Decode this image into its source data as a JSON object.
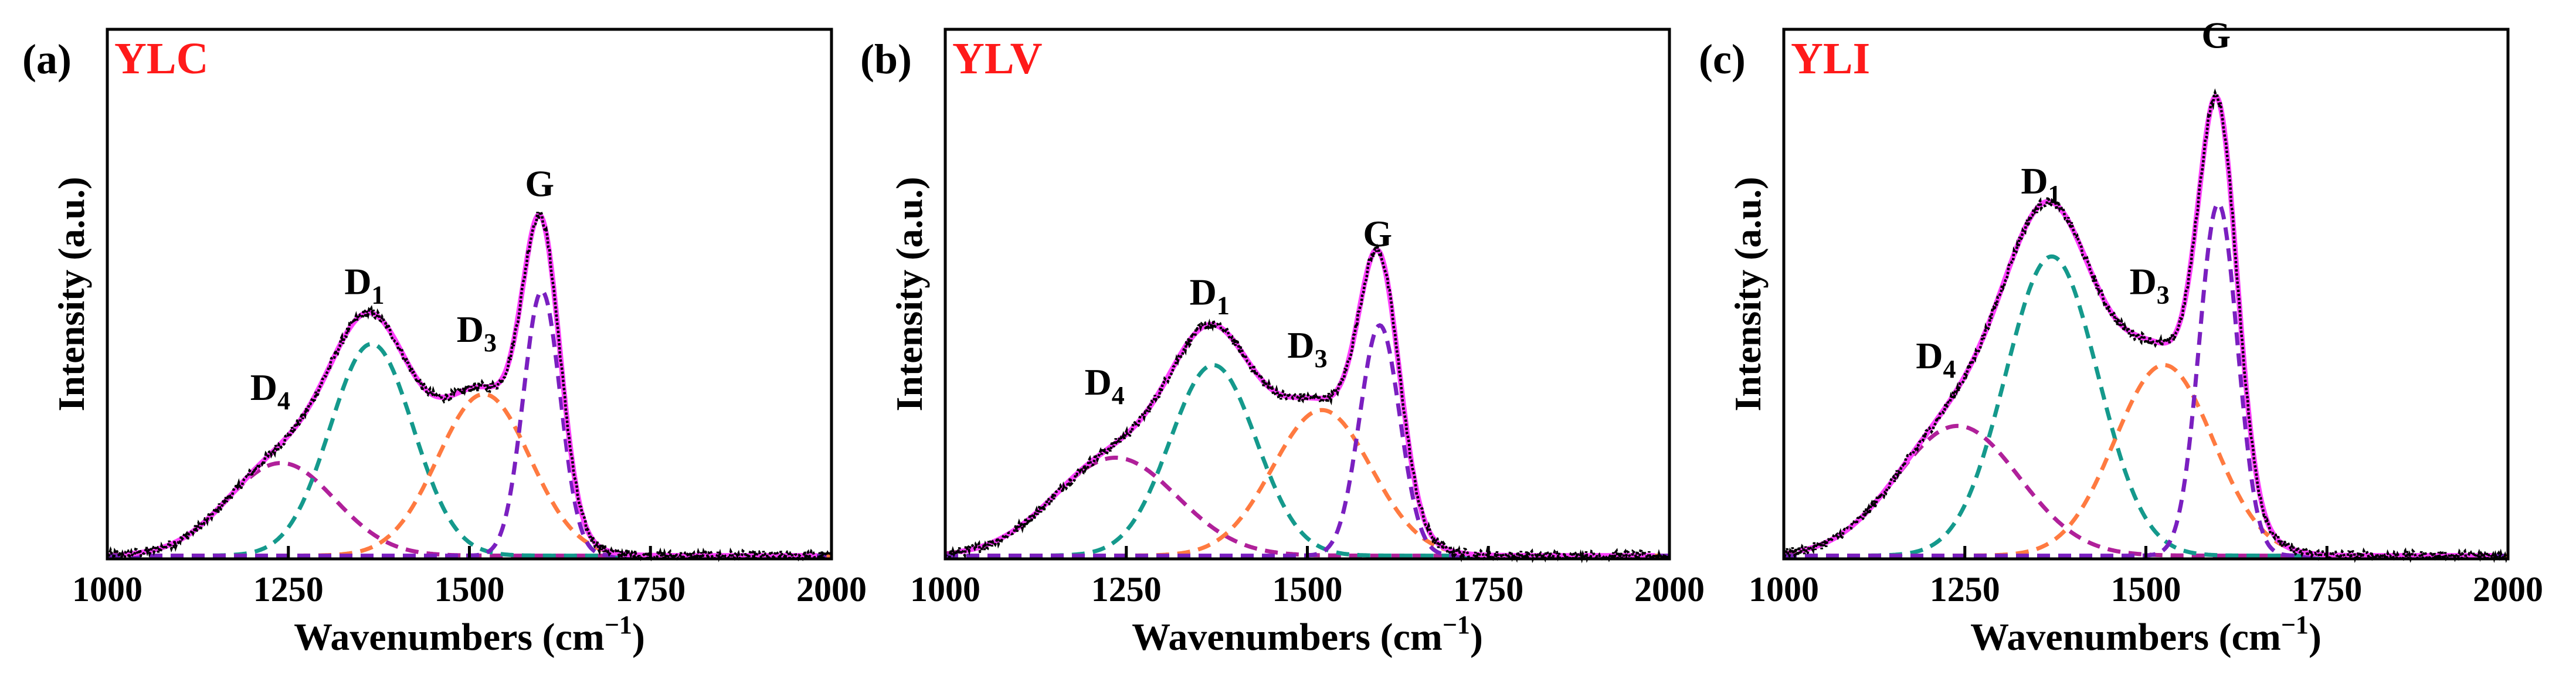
{
  "chart_data": [
    {
      "type": "line",
      "panel_label": "(a)",
      "sample": "YLC",
      "xlabel": "Wavenumbers (cm",
      "xlabel_sup": "−1",
      "xlabel_end": ")",
      "ylabel": "Intensity (a.u.)",
      "xlim": [
        1000,
        2000
      ],
      "ylim": [
        0,
        1.0
      ],
      "xticks": [
        1000,
        1250,
        1500,
        1750,
        2000
      ],
      "tick_labels": [
        "1000",
        "1250",
        "1500",
        "1750",
        "2000"
      ],
      "baseline": 0.006,
      "components": [
        {
          "name": "D4",
          "label_main": "D",
          "label_sub": "4",
          "center": 1240,
          "fwhm": 175,
          "height": 0.175,
          "color": "#b0209a"
        },
        {
          "name": "D1",
          "label_main": "D",
          "label_sub": "1",
          "center": 1365,
          "fwhm": 135,
          "height": 0.4,
          "color": "#14998c"
        },
        {
          "name": "D3",
          "label_main": "D",
          "label_sub": "3",
          "center": 1520,
          "fwhm": 150,
          "height": 0.305,
          "color": "#ff7a40"
        },
        {
          "name": "G",
          "label_main": "G",
          "label_sub": "",
          "center": 1600,
          "fwhm": 60,
          "height": 0.5,
          "color": "#7a1fc0"
        }
      ],
      "peak_labels": [
        {
          "main": "D",
          "sub": "4",
          "x": 1225,
          "y": 0.3
        },
        {
          "main": "D",
          "sub": "1",
          "x": 1355,
          "y": 0.5
        },
        {
          "main": "D",
          "sub": "3",
          "x": 1510,
          "y": 0.41
        },
        {
          "main": "G",
          "sub": "",
          "x": 1597,
          "y": 0.685
        }
      ],
      "fitted_color": "#ff40ff",
      "measured_color": "#000000"
    },
    {
      "type": "line",
      "panel_label": "(b)",
      "sample": "YLV",
      "xlabel": "Wavenumbers (cm",
      "xlabel_sup": "−1",
      "xlabel_end": ")",
      "ylabel": "Intensity (a.u.)",
      "xlim": [
        1000,
        2000
      ],
      "ylim": [
        0,
        1.0
      ],
      "xticks": [
        1000,
        1250,
        1500,
        1750,
        2000
      ],
      "tick_labels": [
        "1000",
        "1250",
        "1500",
        "1750",
        "2000"
      ],
      "baseline": 0.006,
      "components": [
        {
          "name": "D4",
          "label_main": "D",
          "label_sub": "4",
          "center": 1235,
          "fwhm": 200,
          "height": 0.185,
          "color": "#b0209a"
        },
        {
          "name": "D1",
          "label_main": "D",
          "label_sub": "1",
          "center": 1370,
          "fwhm": 140,
          "height": 0.36,
          "color": "#14998c"
        },
        {
          "name": "D3",
          "label_main": "D",
          "label_sub": "3",
          "center": 1520,
          "fwhm": 160,
          "height": 0.275,
          "color": "#ff7a40"
        },
        {
          "name": "G",
          "label_main": "G",
          "label_sub": "",
          "center": 1600,
          "fwhm": 65,
          "height": 0.435,
          "color": "#7a1fc0"
        }
      ],
      "peak_labels": [
        {
          "main": "D",
          "sub": "4",
          "x": 1220,
          "y": 0.31
        },
        {
          "main": "D",
          "sub": "1",
          "x": 1365,
          "y": 0.48
        },
        {
          "main": "D",
          "sub": "3",
          "x": 1500,
          "y": 0.38
        },
        {
          "main": "G",
          "sub": "",
          "x": 1597,
          "y": 0.59
        }
      ],
      "fitted_color": "#ff40ff",
      "measured_color": "#000000"
    },
    {
      "type": "line",
      "panel_label": "(c)",
      "sample": "YLI",
      "xlabel": "Wavenumbers (cm",
      "xlabel_sup": "−1",
      "xlabel_end": ")",
      "ylabel": "Intensity (a.u.)",
      "xlim": [
        1000,
        2000
      ],
      "ylim": [
        0,
        1.0
      ],
      "xticks": [
        1000,
        1250,
        1500,
        1750,
        2000
      ],
      "tick_labels": [
        "1000",
        "1250",
        "1500",
        "1750",
        "2000"
      ],
      "baseline": 0.006,
      "components": [
        {
          "name": "D4",
          "label_main": "D",
          "label_sub": "4",
          "center": 1240,
          "fwhm": 200,
          "height": 0.245,
          "color": "#b0209a"
        },
        {
          "name": "D1",
          "label_main": "D",
          "label_sub": "1",
          "center": 1370,
          "fwhm": 150,
          "height": 0.565,
          "color": "#14998c"
        },
        {
          "name": "D3",
          "label_main": "D",
          "label_sub": "3",
          "center": 1525,
          "fwhm": 160,
          "height": 0.36,
          "color": "#ff7a40"
        },
        {
          "name": "G",
          "label_main": "G",
          "label_sub": "",
          "center": 1600,
          "fwhm": 62,
          "height": 0.665,
          "color": "#7a1fc0"
        }
      ],
      "peak_labels": [
        {
          "main": "D",
          "sub": "4",
          "x": 1210,
          "y": 0.36
        },
        {
          "main": "D",
          "sub": "1",
          "x": 1355,
          "y": 0.69
        },
        {
          "main": "D",
          "sub": "3",
          "x": 1505,
          "y": 0.5
        },
        {
          "main": "G",
          "sub": "",
          "x": 1597,
          "y": 0.965
        }
      ],
      "fitted_color": "#ff40ff",
      "measured_color": "#000000"
    }
  ]
}
